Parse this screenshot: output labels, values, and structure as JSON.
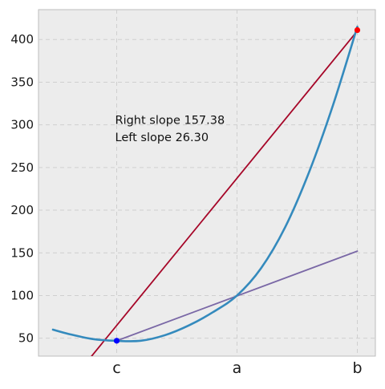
{
  "chart_data": {
    "type": "line",
    "title": "",
    "xlabel": "",
    "ylabel": "",
    "x_ticks": [
      {
        "x": 0,
        "label": "c"
      },
      {
        "x": 1,
        "label": "a"
      },
      {
        "x": 2,
        "label": "b"
      }
    ],
    "xlim": [
      -0.65,
      2.15
    ],
    "ylim": [
      29,
      435
    ],
    "y_ticks": [
      50,
      100,
      150,
      200,
      250,
      300,
      350,
      400
    ],
    "grid": true,
    "grid_style": "dashed",
    "colors": {
      "axes_background": "#ececec",
      "grid": "#cfcfcf",
      "curve": "#348abd",
      "tangent": "#a60628",
      "secant": "#7a68a6",
      "point_left": "#0000ff",
      "point_right": "#ff0000"
    },
    "series": [
      {
        "role": "curve",
        "x": [
          -0.53,
          -0.4,
          -0.2,
          0.0,
          0.2,
          0.4,
          0.6,
          0.8,
          1.0,
          1.2,
          1.4,
          1.6,
          1.8,
          2.0
        ],
        "y": [
          60,
          55,
          49,
          46.9,
          47,
          53.5,
          65,
          80.5,
          100,
          132,
          180,
          245,
          324,
          415
        ]
      },
      {
        "role": "tangent-at-a",
        "x": [
          -0.22,
          2.0
        ],
        "y": [
          27,
          410
        ]
      },
      {
        "role": "secant-c-a",
        "x": [
          0.0,
          2.0
        ],
        "y": [
          47,
          152
        ]
      }
    ],
    "points": [
      {
        "role": "point-c",
        "x": 0.0,
        "y": 47
      },
      {
        "role": "point-b",
        "x": 2.0,
        "y": 411
      }
    ],
    "annotations": {
      "right_slope": "Right slope 157.38",
      "left_slope": "Left  slope 26.30"
    }
  }
}
